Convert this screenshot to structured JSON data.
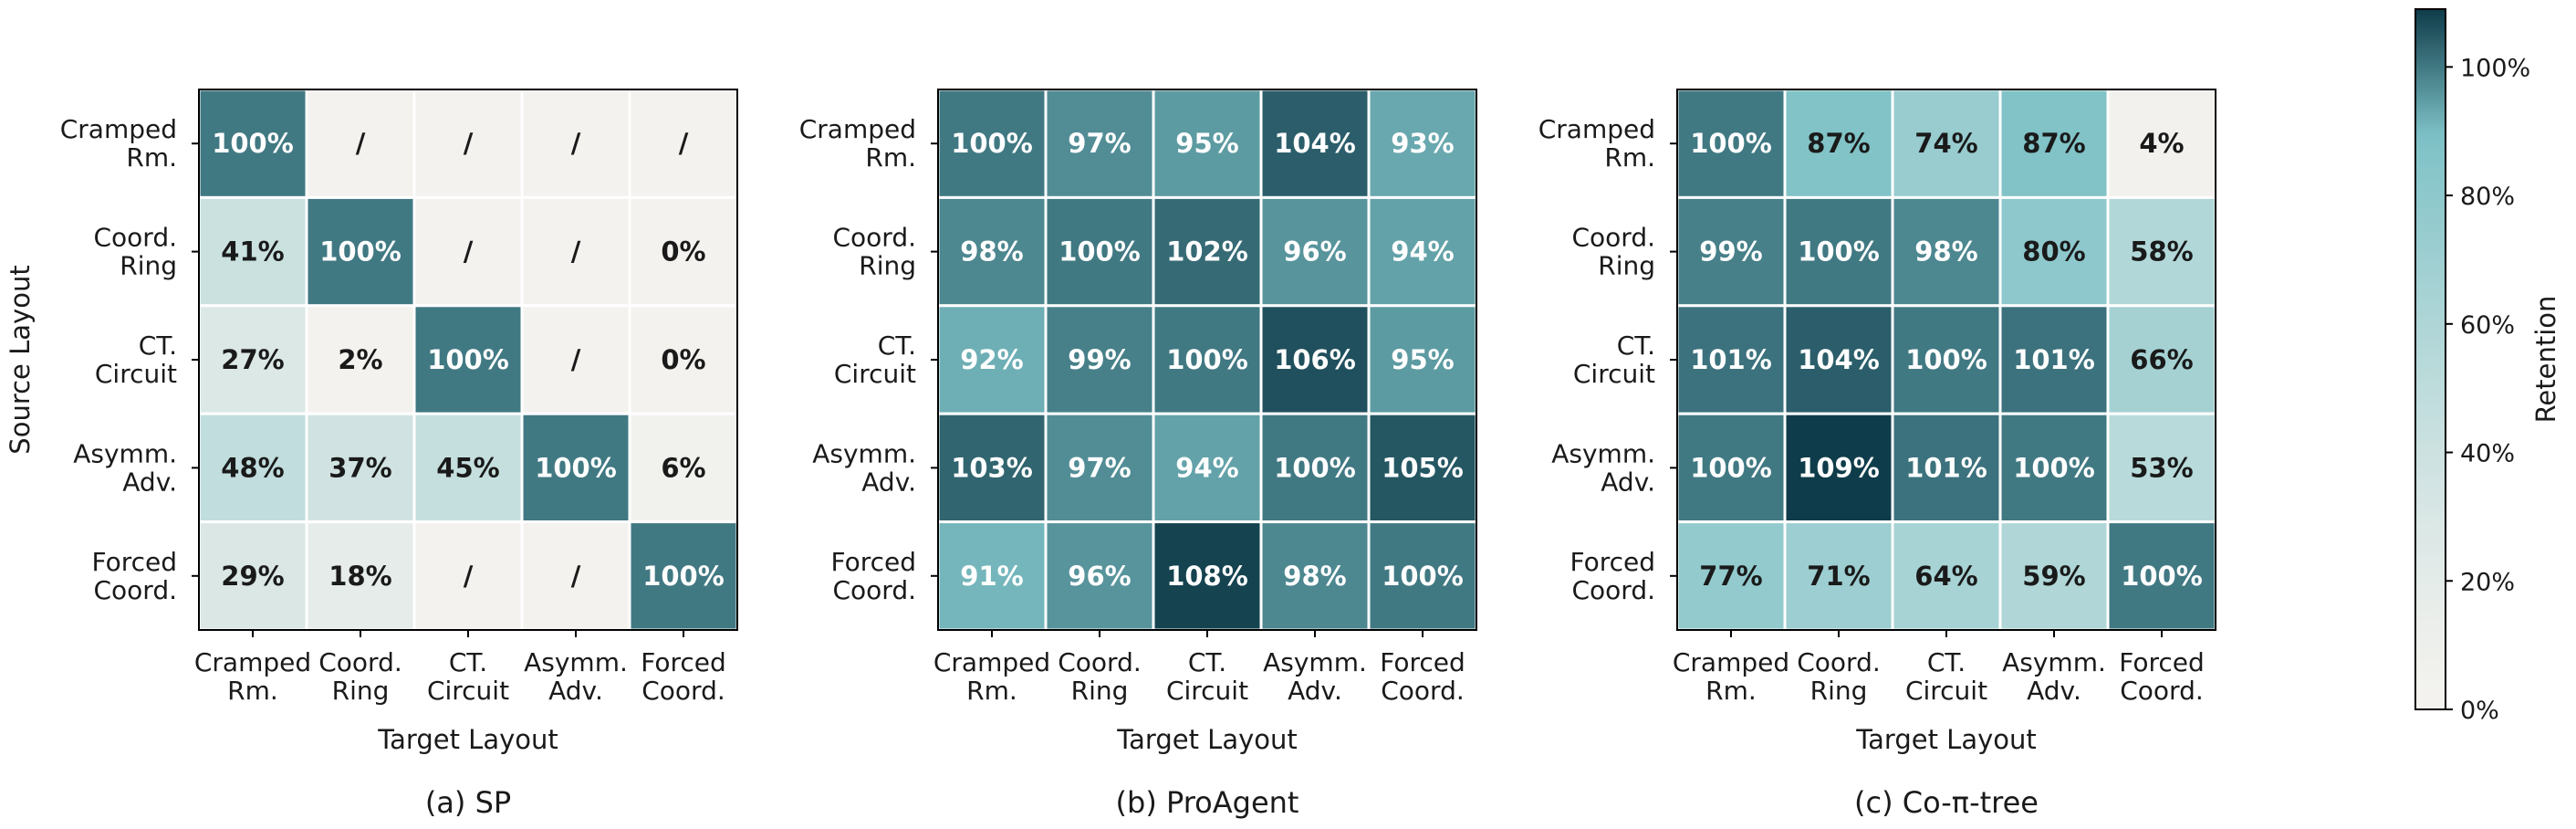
{
  "chart_data": [
    {
      "type": "heatmap",
      "caption": "(a) SP",
      "xlabel": "Target Layout",
      "ylabel": "Source Layout",
      "x_categories": [
        "Cramped Rm.",
        "Coord. Ring",
        "CT. Circuit",
        "Asymm. Adv.",
        "Forced Coord."
      ],
      "y_categories": [
        "Cramped Rm.",
        "Coord. Ring",
        "CT. Circuit",
        "Asymm. Adv.",
        "Forced Coord."
      ],
      "values": [
        [
          100,
          null,
          null,
          null,
          null
        ],
        [
          41,
          100,
          null,
          null,
          0
        ],
        [
          27,
          2,
          100,
          null,
          0
        ],
        [
          48,
          37,
          45,
          100,
          6
        ],
        [
          29,
          18,
          null,
          null,
          100
        ]
      ],
      "missing_label": "/",
      "value_suffix": "%"
    },
    {
      "type": "heatmap",
      "caption": "(b) ProAgent",
      "xlabel": "Target Layout",
      "ylabel": "",
      "x_categories": [
        "Cramped Rm.",
        "Coord. Ring",
        "CT. Circuit",
        "Asymm. Adv.",
        "Forced Coord."
      ],
      "y_categories": [
        "Cramped Rm.",
        "Coord. Ring",
        "CT. Circuit",
        "Asymm. Adv.",
        "Forced Coord."
      ],
      "values": [
        [
          100,
          97,
          95,
          104,
          93
        ],
        [
          98,
          100,
          102,
          96,
          94
        ],
        [
          92,
          99,
          100,
          106,
          95
        ],
        [
          103,
          97,
          94,
          100,
          105
        ],
        [
          91,
          96,
          108,
          98,
          100
        ]
      ],
      "missing_label": "/",
      "value_suffix": "%"
    },
    {
      "type": "heatmap",
      "caption": "(c) Co-π-tree",
      "xlabel": "Target Layout",
      "ylabel": "",
      "x_categories": [
        "Cramped Rm.",
        "Coord. Ring",
        "CT. Circuit",
        "Asymm. Adv.",
        "Forced Coord."
      ],
      "y_categories": [
        "Cramped Rm.",
        "Coord. Ring",
        "CT. Circuit",
        "Asymm. Adv.",
        "Forced Coord."
      ],
      "values": [
        [
          100,
          87,
          74,
          87,
          4
        ],
        [
          99,
          100,
          98,
          80,
          58
        ],
        [
          101,
          104,
          100,
          101,
          66
        ],
        [
          100,
          109,
          101,
          100,
          53
        ],
        [
          77,
          71,
          64,
          59,
          100
        ]
      ],
      "missing_label": "/",
      "value_suffix": "%"
    }
  ],
  "colorbar": {
    "label": "Retention",
    "range": [
      0,
      109
    ],
    "ticks": [
      0,
      20,
      40,
      60,
      80,
      100
    ],
    "tick_labels": [
      "0%",
      "20%",
      "40%",
      "60%",
      "80%",
      "100%"
    ],
    "colors": {
      "low": "#f4f2ee",
      "mid": "#7dc1c6",
      "high": "#0f3c4a"
    }
  }
}
